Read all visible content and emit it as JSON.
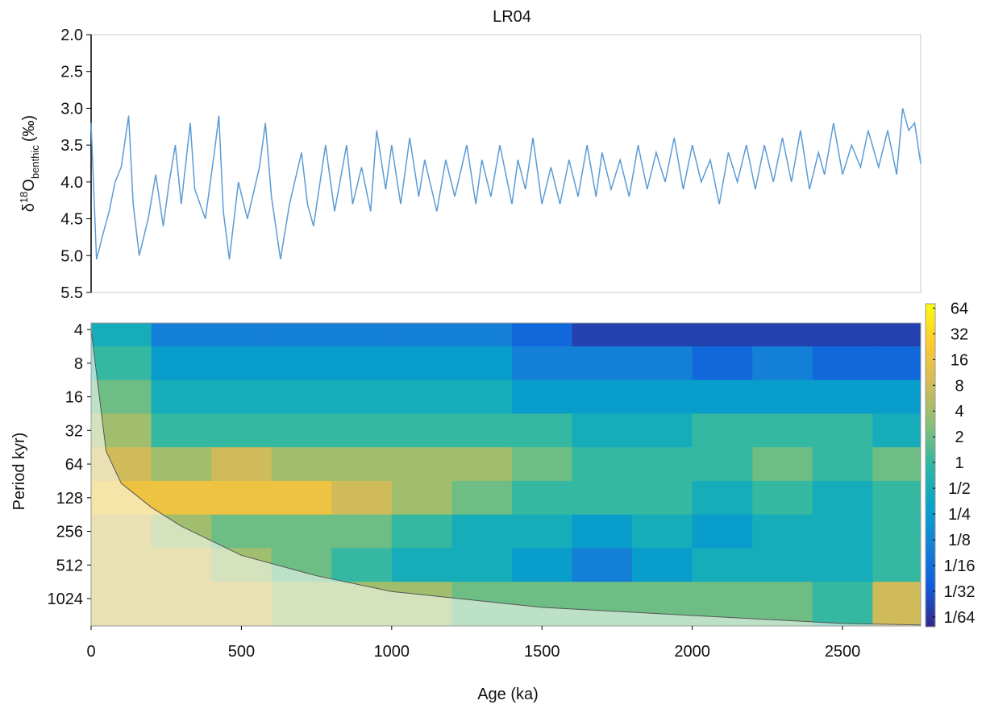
{
  "chart_data": [
    {
      "type": "line",
      "title": "LR04",
      "ylabel": {
        "base": "δ",
        "sup": "18",
        "main": "O",
        "sub": "benthic",
        "unit": "(‰)"
      },
      "x": [
        0,
        18,
        40,
        60,
        80,
        100,
        125,
        140,
        160,
        190,
        215,
        240,
        260,
        280,
        300,
        330,
        345,
        380,
        410,
        425,
        440,
        460,
        490,
        520,
        560,
        580,
        600,
        630,
        660,
        700,
        720,
        740,
        780,
        810,
        850,
        870,
        900,
        930,
        950,
        980,
        1000,
        1030,
        1060,
        1090,
        1110,
        1150,
        1180,
        1210,
        1250,
        1280,
        1300,
        1330,
        1360,
        1400,
        1420,
        1445,
        1470,
        1500,
        1530,
        1560,
        1590,
        1620,
        1650,
        1680,
        1700,
        1730,
        1760,
        1790,
        1820,
        1850,
        1880,
        1910,
        1940,
        1970,
        2000,
        2030,
        2060,
        2090,
        2120,
        2150,
        2180,
        2210,
        2240,
        2270,
        2300,
        2330,
        2360,
        2390,
        2420,
        2440,
        2470,
        2500,
        2530,
        2560,
        2585,
        2620,
        2650,
        2680,
        2700,
        2720,
        2740,
        2760
      ],
      "values": [
        3.2,
        5.05,
        4.7,
        4.4,
        4.0,
        3.8,
        3.1,
        4.3,
        5.0,
        4.5,
        3.9,
        4.6,
        4.0,
        3.5,
        4.3,
        3.2,
        4.1,
        4.5,
        3.6,
        3.1,
        4.4,
        5.05,
        4.0,
        4.5,
        3.8,
        3.2,
        4.2,
        5.05,
        4.3,
        3.6,
        4.3,
        4.6,
        3.5,
        4.4,
        3.5,
        4.3,
        3.8,
        4.4,
        3.3,
        4.1,
        3.5,
        4.3,
        3.4,
        4.2,
        3.7,
        4.4,
        3.7,
        4.2,
        3.5,
        4.3,
        3.7,
        4.2,
        3.5,
        4.3,
        3.7,
        4.1,
        3.4,
        4.3,
        3.8,
        4.3,
        3.7,
        4.2,
        3.5,
        4.2,
        3.6,
        4.1,
        3.7,
        4.2,
        3.5,
        4.1,
        3.6,
        4.0,
        3.4,
        4.1,
        3.5,
        4.0,
        3.7,
        4.3,
        3.6,
        4.0,
        3.5,
        4.1,
        3.5,
        4.0,
        3.4,
        4.0,
        3.3,
        4.1,
        3.6,
        3.9,
        3.2,
        3.9,
        3.5,
        3.8,
        3.3,
        3.8,
        3.3,
        3.9,
        3.0,
        3.3,
        3.2,
        3.75
      ],
      "color": "#5b9bd5",
      "xlim": [
        0,
        2760
      ],
      "ylim": [
        2.0,
        5.5
      ],
      "y_inverted": true,
      "yticks": [
        {
          "value": 2,
          "label": "2.0"
        },
        2.5,
        {
          "value": 3,
          "label": "3.0"
        },
        3.5,
        {
          "value": 4,
          "label": "4.0"
        },
        4.5,
        {
          "value": 5,
          "label": "5.0"
        },
        5.5
      ]
    },
    {
      "type": "heatmap",
      "xlabel": "Age (ka)",
      "ylabel": "Period kyr)",
      "x": [
        100,
        300,
        500,
        700,
        900,
        1100,
        1300,
        1500,
        1700,
        1900,
        2100,
        2300,
        2500,
        2700
      ],
      "periods": [
        4,
        8,
        16,
        32,
        64,
        128,
        256,
        512,
        1024
      ],
      "power": [
        [
          0.5,
          0.1,
          0.1,
          0.1,
          0.1,
          0.1,
          0.1,
          0.05,
          0.02,
          0.02,
          0.02,
          0.02,
          0.02,
          0.02
        ],
        [
          1,
          0.25,
          0.25,
          0.25,
          0.25,
          0.25,
          0.25,
          0.1,
          0.1,
          0.1,
          0.05,
          0.1,
          0.05,
          0.05
        ],
        [
          2,
          0.5,
          0.5,
          0.5,
          0.5,
          0.5,
          0.5,
          0.25,
          0.25,
          0.25,
          0.25,
          0.25,
          0.25,
          0.25
        ],
        [
          4,
          1,
          1,
          1,
          1,
          1,
          1,
          1,
          0.5,
          0.5,
          1,
          1,
          1,
          0.5
        ],
        [
          8,
          4,
          8,
          4,
          4,
          4,
          4,
          2,
          1,
          1,
          1,
          2,
          1,
          2
        ],
        [
          16,
          16,
          16,
          16,
          8,
          4,
          2,
          1,
          1,
          1,
          0.5,
          1,
          0.5,
          1
        ],
        [
          8,
          4,
          2,
          2,
          2,
          1,
          0.5,
          0.5,
          0.25,
          0.5,
          0.25,
          0.5,
          0.5,
          1
        ],
        [
          8,
          8,
          4,
          2,
          1,
          0.5,
          0.5,
          0.25,
          0.1,
          0.25,
          0.5,
          0.5,
          0.5,
          1
        ],
        [
          8,
          8,
          8,
          4,
          4,
          4,
          2,
          2,
          2,
          2,
          2,
          2,
          1,
          8
        ]
      ],
      "xlim": [
        0,
        2760
      ],
      "xticks": [
        0,
        500,
        1000,
        1500,
        2000,
        2500
      ],
      "ylim": [
        3.5,
        1800
      ],
      "y_log": true,
      "yticks": [
        4,
        8,
        16,
        32,
        64,
        128,
        256,
        512,
        1024
      ],
      "clim": [
        0.012,
        72
      ],
      "cticks": [
        64,
        32,
        16,
        8,
        4,
        2,
        1,
        {
          "value": 0.5,
          "label": "1/2"
        },
        {
          "value": 0.25,
          "label": "1/4"
        },
        {
          "value": 0.125,
          "label": "1/8"
        },
        {
          "value": 0.0625,
          "label": "1/16"
        },
        {
          "value": 0.03125,
          "label": "1/32"
        },
        {
          "value": 0.015625,
          "label": "1/64"
        }
      ],
      "colormap": [
        "#352a87",
        "#0f5cdd",
        "#1481d6",
        "#06a4ca",
        "#2eb7a4",
        "#87bf77",
        "#d1bb59",
        "#fec832",
        "#f9fb0e"
      ],
      "coi": {
        "x": [
          0,
          50,
          100,
          200,
          300,
          500,
          750,
          1000,
          1500,
          2000,
          2500,
          2760
        ],
        "period": [
          4,
          49,
          95,
          156,
          230,
          420,
          640,
          885,
          1227,
          1450,
          1710,
          1765
        ]
      }
    }
  ]
}
